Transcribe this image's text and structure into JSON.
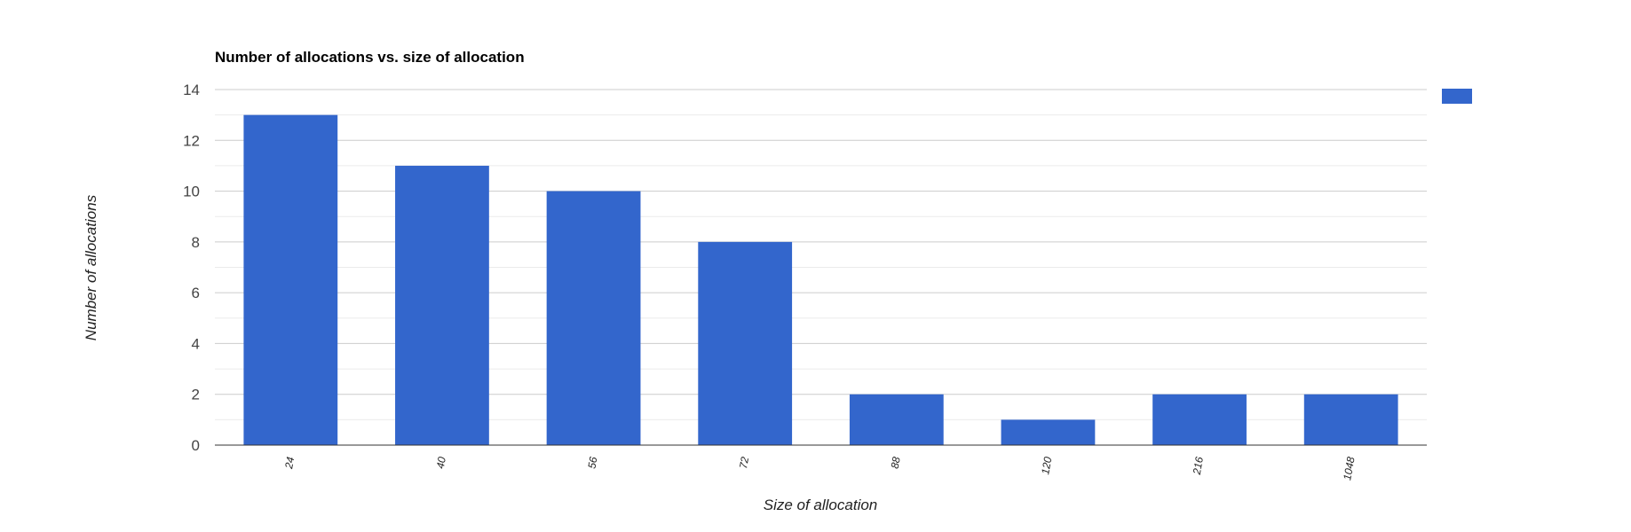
{
  "chart_data": {
    "type": "bar",
    "title": "Number of allocations vs. size of allocation",
    "xlabel": "Size of allocation",
    "ylabel": "Number of allocations",
    "categories": [
      "24",
      "40",
      "56",
      "72",
      "88",
      "120",
      "216",
      "1048"
    ],
    "values": [
      13,
      11,
      10,
      8,
      2,
      1,
      2,
      2
    ],
    "ylim": [
      0,
      14
    ],
    "yticks": [
      "0",
      "2",
      "4",
      "6",
      "8",
      "10",
      "12",
      "14"
    ],
    "grid": true,
    "legend_position": "top-right",
    "bar_color": "#3366cc"
  }
}
